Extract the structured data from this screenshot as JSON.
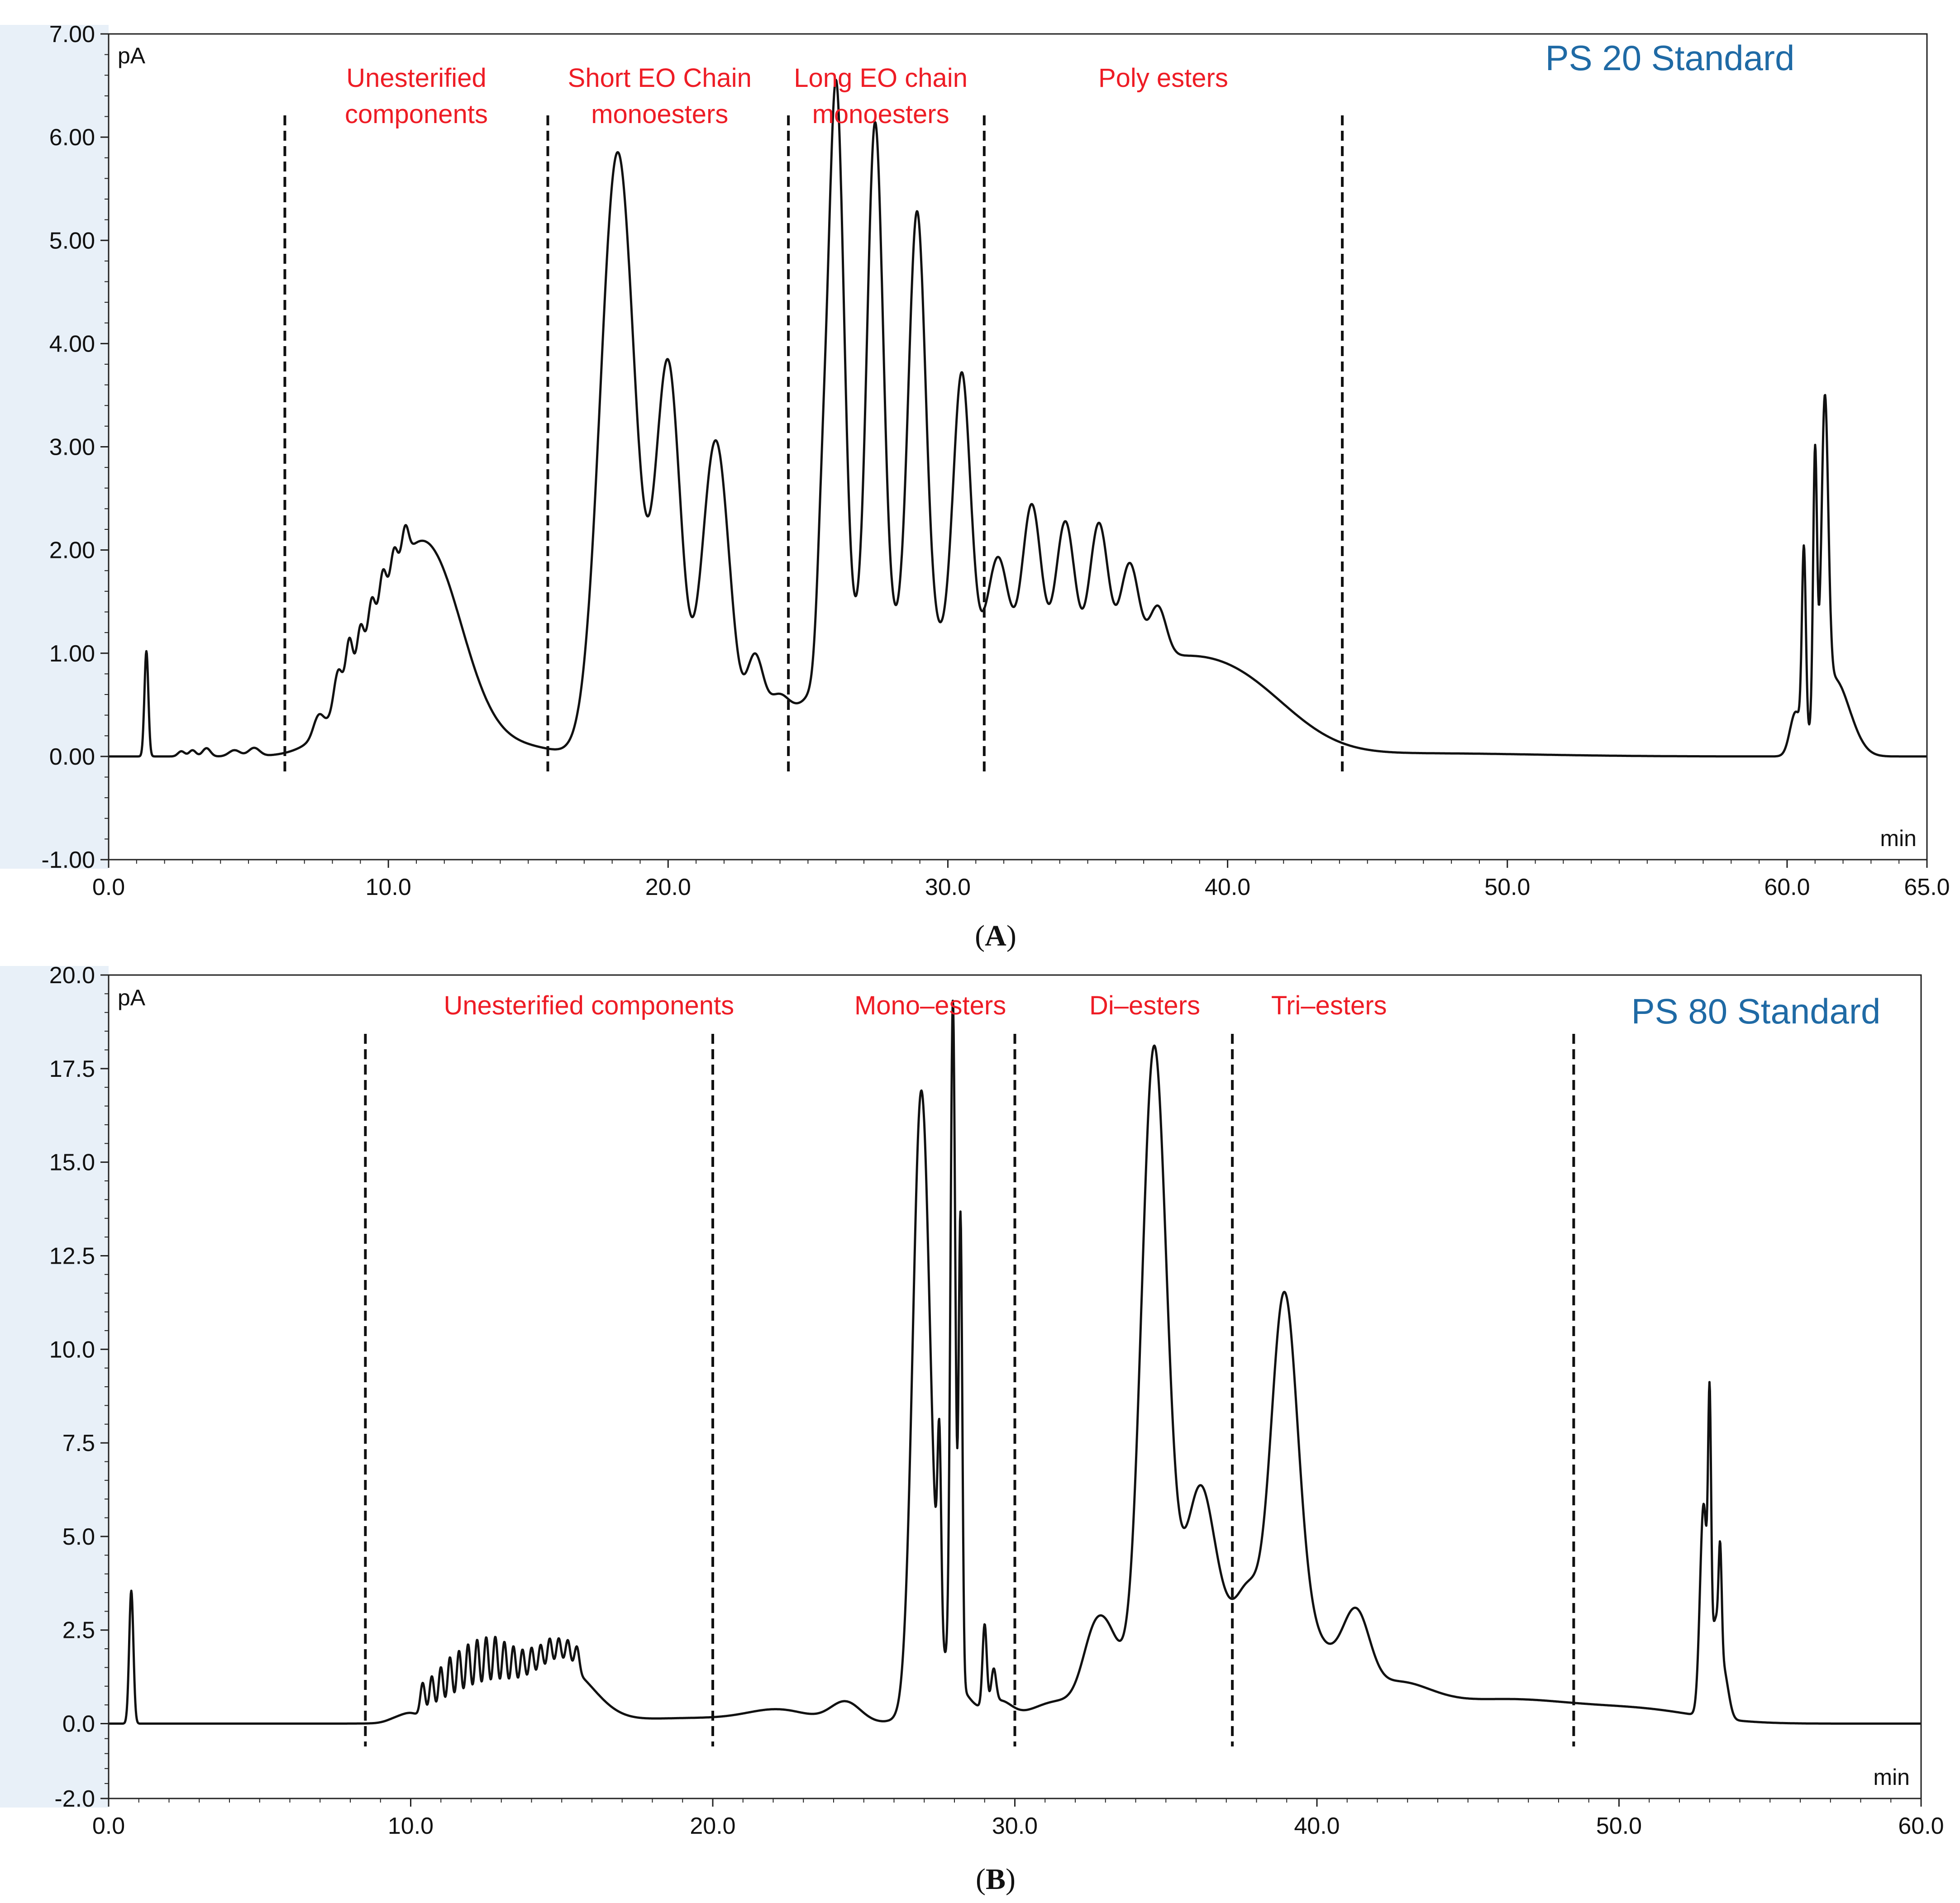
{
  "chart_data": [
    {
      "type": "line",
      "panel": "A",
      "title": "PS 20 Standard",
      "caption": "(A)",
      "ylabel": "pA",
      "xlabel": "min",
      "xlim": [
        0,
        65
      ],
      "ylim": [
        -1,
        7
      ],
      "x_ticks": [
        "0.0",
        "10.0",
        "20.0",
        "30.0",
        "40.0",
        "50.0",
        "60.0",
        "65.0"
      ],
      "x_tick_values": [
        0,
        10,
        20,
        30,
        40,
        50,
        60,
        65
      ],
      "y_ticks": [
        "-1.00",
        "0.00",
        "1.00",
        "2.00",
        "3.00",
        "4.00",
        "5.00",
        "6.00",
        "7.00"
      ],
      "y_tick_values": [
        -1,
        0,
        1,
        2,
        3,
        4,
        5,
        6,
        7
      ],
      "dividers": [
        6.3,
        15.7,
        24.3,
        31.3,
        44.1
      ],
      "regions": [
        {
          "lines": [
            "Unesterified",
            "components"
          ],
          "x": 11.0
        },
        {
          "lines": [
            "Short EO Chain",
            "monoesters"
          ],
          "x": 19.7
        },
        {
          "lines": [
            "Long EO chain",
            "monoesters"
          ],
          "x": 27.6
        },
        {
          "lines": [
            "Poly esters"
          ],
          "x": 37.7
        }
      ],
      "baseline": 0.0,
      "peaks": [
        {
          "x": 1.35,
          "h": 1.02,
          "w": 0.07
        },
        {
          "x": 2.6,
          "h": 0.05,
          "w": 0.12
        },
        {
          "x": 3.0,
          "h": 0.06,
          "w": 0.12
        },
        {
          "x": 3.5,
          "h": 0.08,
          "w": 0.14
        },
        {
          "x": 4.5,
          "h": 0.06,
          "w": 0.2
        },
        {
          "x": 5.2,
          "h": 0.08,
          "w": 0.2
        },
        {
          "x": 7.5,
          "h": 0.18,
          "w": 0.18
        },
        {
          "x": 8.2,
          "h": 0.35,
          "w": 0.15
        },
        {
          "x": 8.6,
          "h": 0.45,
          "w": 0.12
        },
        {
          "x": 9.0,
          "h": 0.35,
          "w": 0.12
        },
        {
          "x": 9.4,
          "h": 0.35,
          "w": 0.12
        },
        {
          "x": 9.8,
          "h": 0.35,
          "w": 0.12
        },
        {
          "x": 10.2,
          "h": 0.3,
          "w": 0.12
        },
        {
          "x": 10.6,
          "h": 0.3,
          "w": 0.12
        },
        {
          "x": 9.9,
          "h": 0.95,
          "w": 1.4
        },
        {
          "x": 11.6,
          "h": 1.55,
          "w": 1.2
        },
        {
          "x": 14.5,
          "h": 0.1,
          "w": 1.4
        },
        {
          "x": 18.2,
          "h": 5.85,
          "w": 0.62
        },
        {
          "x": 20.0,
          "h": 3.75,
          "w": 0.45
        },
        {
          "x": 21.7,
          "h": 3.05,
          "w": 0.5
        },
        {
          "x": 23.1,
          "h": 0.8,
          "w": 0.3
        },
        {
          "x": 23.9,
          "h": 0.35,
          "w": 0.4
        },
        {
          "x": 25.5,
          "h": 1.1,
          "w": 0.18
        },
        {
          "x": 26.0,
          "h": 5.6,
          "w": 0.28
        },
        {
          "x": 27.4,
          "h": 5.0,
          "w": 0.28
        },
        {
          "x": 28.9,
          "h": 4.15,
          "w": 0.3
        },
        {
          "x": 30.5,
          "h": 2.65,
          "w": 0.3
        },
        {
          "x": 26.5,
          "h": 0.85,
          "w": 1.6
        },
        {
          "x": 29.5,
          "h": 0.75,
          "w": 1.8
        },
        {
          "x": 31.8,
          "h": 0.95,
          "w": 0.35
        },
        {
          "x": 33.0,
          "h": 1.5,
          "w": 0.33
        },
        {
          "x": 34.2,
          "h": 1.35,
          "w": 0.33
        },
        {
          "x": 35.4,
          "h": 1.35,
          "w": 0.33
        },
        {
          "x": 36.5,
          "h": 0.95,
          "w": 0.33
        },
        {
          "x": 37.5,
          "h": 0.5,
          "w": 0.3
        },
        {
          "x": 33.5,
          "h": 0.8,
          "w": 2.5
        },
        {
          "x": 38.5,
          "h": 0.75,
          "w": 2.3
        },
        {
          "x": 41.0,
          "h": 0.3,
          "w": 1.8
        },
        {
          "x": 47.0,
          "h": 0.03,
          "w": 4.0
        },
        {
          "x": 60.3,
          "h": 0.4,
          "w": 0.2
        },
        {
          "x": 60.6,
          "h": 1.8,
          "w": 0.07
        },
        {
          "x": 61.0,
          "h": 2.6,
          "w": 0.07
        },
        {
          "x": 61.35,
          "h": 2.85,
          "w": 0.12
        },
        {
          "x": 61.5,
          "h": 0.55,
          "w": 0.5
        },
        {
          "x": 62.0,
          "h": 0.3,
          "w": 0.5
        }
      ]
    },
    {
      "type": "line",
      "panel": "B",
      "title": "PS 80 Standard",
      "caption": "(B)",
      "ylabel": "pA",
      "xlabel": "min",
      "xlim": [
        0,
        60
      ],
      "ylim": [
        -2,
        20
      ],
      "x_ticks": [
        "0.0",
        "10.0",
        "20.0",
        "30.0",
        "40.0",
        "50.0",
        "60.0"
      ],
      "x_tick_values": [
        0,
        10,
        20,
        30,
        40,
        50,
        60
      ],
      "y_ticks": [
        "-2.0",
        "0.0",
        "2.5",
        "5.0",
        "7.5",
        "10.0",
        "12.5",
        "15.0",
        "17.5",
        "20.0"
      ],
      "y_tick_values": [
        -2,
        0,
        2.5,
        5,
        7.5,
        10,
        12.5,
        15,
        17.5,
        20
      ],
      "dividers": [
        8.5,
        20.0,
        30.0,
        37.2,
        48.5
      ],
      "regions": [
        {
          "lines": [
            "Unesterified components"
          ],
          "x": 15.9
        },
        {
          "lines": [
            "Mono–esters"
          ],
          "x": 27.2
        },
        {
          "lines": [
            "Di–esters"
          ],
          "x": 34.3
        },
        {
          "lines": [
            "Tri–esters"
          ],
          "x": 40.4
        }
      ],
      "baseline": 0.0,
      "peaks": [
        {
          "x": 0.75,
          "h": 3.55,
          "w": 0.07
        },
        {
          "x": 9.5,
          "h": 0.1,
          "w": 0.3
        },
        {
          "x": 10.0,
          "h": 0.2,
          "w": 0.3
        },
        {
          "x": 10.4,
          "h": 0.9,
          "w": 0.08
        },
        {
          "x": 10.7,
          "h": 1.1,
          "w": 0.08
        },
        {
          "x": 11.0,
          "h": 1.3,
          "w": 0.08
        },
        {
          "x": 11.3,
          "h": 1.5,
          "w": 0.08
        },
        {
          "x": 11.6,
          "h": 1.6,
          "w": 0.08
        },
        {
          "x": 11.9,
          "h": 1.7,
          "w": 0.08
        },
        {
          "x": 12.2,
          "h": 1.75,
          "w": 0.08
        },
        {
          "x": 12.5,
          "h": 1.75,
          "w": 0.08
        },
        {
          "x": 12.8,
          "h": 1.7,
          "w": 0.08
        },
        {
          "x": 13.1,
          "h": 1.5,
          "w": 0.08
        },
        {
          "x": 13.4,
          "h": 1.3,
          "w": 0.08
        },
        {
          "x": 13.7,
          "h": 1.1,
          "w": 0.08
        },
        {
          "x": 14.0,
          "h": 1.0,
          "w": 0.08
        },
        {
          "x": 14.3,
          "h": 0.9,
          "w": 0.08
        },
        {
          "x": 14.6,
          "h": 0.9,
          "w": 0.08
        },
        {
          "x": 14.9,
          "h": 0.8,
          "w": 0.08
        },
        {
          "x": 15.2,
          "h": 0.75,
          "w": 0.08
        },
        {
          "x": 15.5,
          "h": 0.7,
          "w": 0.08
        },
        {
          "x": 13.2,
          "h": 0.6,
          "w": 1.5
        },
        {
          "x": 15.2,
          "h": 1.2,
          "w": 0.9
        },
        {
          "x": 19.5,
          "h": 0.15,
          "w": 2.5
        },
        {
          "x": 22.2,
          "h": 0.3,
          "w": 1.0
        },
        {
          "x": 24.4,
          "h": 0.55,
          "w": 0.5
        },
        {
          "x": 26.9,
          "h": 16.0,
          "w": 0.28
        },
        {
          "x": 27.5,
          "h": 5.0,
          "w": 0.06
        },
        {
          "x": 27.95,
          "h": 18.0,
          "w": 0.08
        },
        {
          "x": 28.2,
          "h": 12.5,
          "w": 0.06
        },
        {
          "x": 27.6,
          "h": 1.5,
          "w": 0.7
        },
        {
          "x": 29.0,
          "h": 2.2,
          "w": 0.07
        },
        {
          "x": 29.3,
          "h": 0.9,
          "w": 0.08
        },
        {
          "x": 29.5,
          "h": 0.5,
          "w": 0.4
        },
        {
          "x": 31.5,
          "h": 0.6,
          "w": 1.0
        },
        {
          "x": 32.6,
          "h": 1.6,
          "w": 0.4
        },
        {
          "x": 33.2,
          "h": 1.8,
          "w": 0.45
        },
        {
          "x": 34.6,
          "h": 17.5,
          "w": 0.42
        },
        {
          "x": 35.6,
          "h": 2.3,
          "w": 0.6
        },
        {
          "x": 36.2,
          "h": 4.6,
          "w": 0.45
        },
        {
          "x": 36.9,
          "h": 1.5,
          "w": 0.4
        },
        {
          "x": 37.7,
          "h": 3.2,
          "w": 0.45
        },
        {
          "x": 38.9,
          "h": 10.3,
          "w": 0.45
        },
        {
          "x": 39.8,
          "h": 2.1,
          "w": 0.8
        },
        {
          "x": 41.3,
          "h": 2.1,
          "w": 0.45
        },
        {
          "x": 42.5,
          "h": 0.9,
          "w": 1.2
        },
        {
          "x": 45.5,
          "h": 0.5,
          "w": 2.2
        },
        {
          "x": 48.0,
          "h": 0.25,
          "w": 2.0
        },
        {
          "x": 51.0,
          "h": 0.3,
          "w": 1.8
        },
        {
          "x": 52.8,
          "h": 5.6,
          "w": 0.12
        },
        {
          "x": 53.0,
          "h": 6.5,
          "w": 0.05
        },
        {
          "x": 53.2,
          "h": 2.5,
          "w": 0.15
        },
        {
          "x": 53.35,
          "h": 2.6,
          "w": 0.05
        },
        {
          "x": 53.5,
          "h": 1.0,
          "w": 0.15
        }
      ]
    }
  ]
}
